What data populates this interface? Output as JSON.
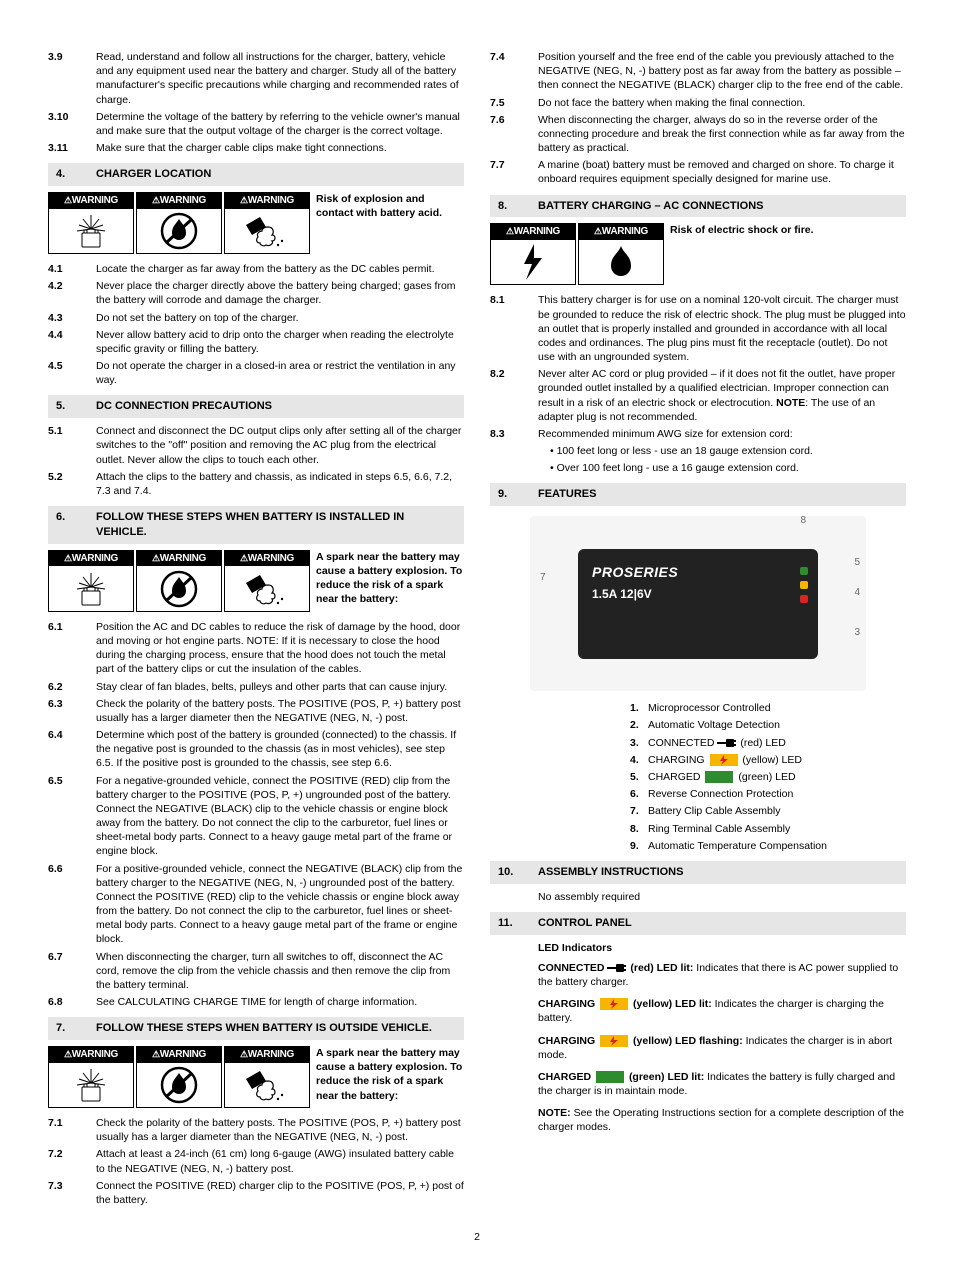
{
  "left": {
    "items_pre": [
      {
        "n": "3.9",
        "t": "Read, understand and follow all instructions for the charger, battery, vehicle and any equipment used near the battery and charger. Study all of the battery manufacturer's specific precautions while charging and recommended rates of charge."
      },
      {
        "n": "3.10",
        "t": "Determine the voltage of the battery by referring to the vehicle owner's manual and make sure that the output voltage of the charger is the correct voltage."
      },
      {
        "n": "3.11",
        "t": "Make sure that the charger cable clips make tight connections."
      }
    ],
    "s4": {
      "n": "4.",
      "t": "CHARGER LOCATION"
    },
    "w4": "Risk of explosion and contact with battery acid.",
    "items4": [
      {
        "n": "4.1",
        "t": "Locate the charger as far away from the battery as the DC cables permit."
      },
      {
        "n": "4.2",
        "t": "Never place the charger directly above the battery being charged; gases from the battery will corrode and damage the charger."
      },
      {
        "n": "4.3",
        "t": "Do not set the battery on top of the charger."
      },
      {
        "n": "4.4",
        "t": "Never allow battery acid to drip onto the charger when reading the electrolyte specific gravity or filling the battery."
      },
      {
        "n": "4.5",
        "t": "Do not operate the charger in a closed-in area or restrict the ventilation in any way."
      }
    ],
    "s5": {
      "n": "5.",
      "t": "DC CONNECTION PRECAUTIONS"
    },
    "items5": [
      {
        "n": "5.1",
        "t": "Connect and disconnect the DC output clips only after setting all of the charger switches to the \"off\" position and removing the AC plug from the electrical outlet. Never allow the clips to touch each other."
      },
      {
        "n": "5.2",
        "t": "Attach the clips to the battery and chassis, as indicated in steps 6.5, 6.6, 7.2, 7.3 and 7.4."
      }
    ],
    "s6": {
      "n": "6.",
      "t": "FOLLOW THESE STEPS WHEN BATTERY IS INSTALLED IN VEHICLE."
    },
    "w6": "A spark near the battery may cause a battery explosion. To reduce the risk of a spark near the battery:",
    "items6": [
      {
        "n": "6.1",
        "t": "Position the AC and DC cables to reduce the risk of damage by the hood, door and moving or hot engine parts. NOTE: If it is necessary to close the hood during the charging process, ensure that the hood does not touch the metal part of the battery clips or cut the insulation of the cables."
      },
      {
        "n": "6.2",
        "t": "Stay clear of fan blades, belts, pulleys and other parts that can cause injury."
      },
      {
        "n": "6.3",
        "t": "Check the polarity of the battery posts. The POSITIVE (POS, P, +) battery post usually has a larger diameter then the NEGATIVE (NEG, N, -) post."
      },
      {
        "n": "6.4",
        "t": "Determine which post of the battery is grounded (connected) to the chassis. If the negative post is grounded to the chassis (as in most vehicles), see step 6.5. If the positive post is grounded to the chassis, see step 6.6."
      },
      {
        "n": "6.5",
        "t": "For a negative-grounded vehicle, connect the POSITIVE (RED) clip from the battery charger to the POSITIVE (POS, P, +) ungrounded post of the battery. Connect the NEGATIVE (BLACK) clip to the vehicle chassis or engine block away from the battery. Do not connect the clip to the carburetor, fuel lines or sheet-metal body parts. Connect to a heavy gauge metal part of the frame or engine block."
      },
      {
        "n": "6.6",
        "t": "For a positive-grounded vehicle, connect the NEGATIVE (BLACK) clip from the battery charger to the NEGATIVE (NEG, N, -) ungrounded post of the battery. Connect the POSITIVE (RED) clip to the vehicle chassis or engine block away from the battery. Do not connect the clip to the carburetor, fuel lines or sheet-metal body parts. Connect to a heavy gauge metal part of the frame or engine block."
      },
      {
        "n": "6.7",
        "t": "When disconnecting the charger, turn all switches to off, disconnect the AC cord, remove the clip from the vehicle chassis and then remove the clip from the battery terminal."
      },
      {
        "n": "6.8",
        "t": "See CALCULATING CHARGE TIME for length of charge information."
      }
    ],
    "s7": {
      "n": "7.",
      "t": "FOLLOW THESE STEPS WHEN BATTERY IS OUTSIDE VEHICLE."
    },
    "w7": "A spark near the battery may cause a battery explosion. To reduce the risk of a spark near the battery:",
    "items7": [
      {
        "n": "7.1",
        "t": "Check the polarity of the battery posts. The POSITIVE (POS, P, +) battery post usually has a larger diameter than the NEGATIVE (NEG, N, -) post."
      },
      {
        "n": "7.2",
        "t": "Attach at least a 24-inch (61 cm) long 6-gauge (AWG) insulated battery cable to the NEGATIVE (NEG, N, -) battery post."
      },
      {
        "n": "7.3",
        "t": "Connect the POSITIVE (RED) charger clip to the POSITIVE (POS, P, +) post of the battery."
      }
    ]
  },
  "right": {
    "items7b": [
      {
        "n": "7.4",
        "t": "Position yourself and the free end of the cable you previously attached to the NEGATIVE (NEG, N, -) battery post as far away from the battery as possible – then connect the NEGATIVE (BLACK) charger clip to the free end of the cable."
      },
      {
        "n": "7.5",
        "t": "Do not face the battery when making the final connection."
      },
      {
        "n": "7.6",
        "t": "When disconnecting the charger, always do so in the reverse order of the connecting procedure and break the first connection while as far away from the battery as practical."
      },
      {
        "n": "7.7",
        "t": "A marine (boat) battery must be removed and charged on shore. To charge it onboard requires equipment specially designed for marine use."
      }
    ],
    "s8": {
      "n": "8.",
      "t": "BATTERY CHARGING – AC CONNECTIONS"
    },
    "w8": "Risk of electric shock or fire.",
    "items8": [
      {
        "n": "8.1",
        "t": "This battery charger is for use on a nominal 120-volt circuit. The charger must be grounded to reduce the risk of electric shock. The plug must be plugged into an outlet that is properly installed and grounded in accordance with all local codes and ordinances. The plug pins must fit the receptacle (outlet). Do not use with an ungrounded system."
      },
      {
        "n": "8.2",
        "t": "Never alter AC cord or plug provided – if it does not fit the outlet, have proper grounded outlet installed by a qualified electrician. Improper connection can result in a risk of an electric shock or electrocution. NOTE: The use of an adapter plug is not recommended.",
        "note": "NOTE"
      },
      {
        "n": "8.3",
        "t": "Recommended minimum AWG size for extension cord:"
      }
    ],
    "bullets8": [
      "100 feet long or less - use an 18 gauge extension cord.",
      "Over 100 feet long - use a 16 gauge extension cord."
    ],
    "s9": {
      "n": "9.",
      "t": "FEATURES"
    },
    "device": {
      "brand": "PROSERIES",
      "spec": "1.5A 12|6V"
    },
    "callouts": [
      "8",
      "7",
      "5",
      "4",
      "3"
    ],
    "features": [
      {
        "n": "1.",
        "t": "Microprocessor Controlled"
      },
      {
        "n": "2.",
        "t": "Automatic Voltage Detection"
      },
      {
        "n": "3.",
        "pre": "CONNECTED",
        "icon": "plug",
        "paren": "(red) LED"
      },
      {
        "n": "4.",
        "pre": "CHARGING",
        "icon": "swatch",
        "color": "#f7b500",
        "bolt": true,
        "paren": "(yellow) LED"
      },
      {
        "n": "5.",
        "pre": "CHARGED",
        "icon": "swatch",
        "color": "#2e8b2e",
        "paren": "(green) LED"
      },
      {
        "n": "6.",
        "t": "Reverse Connection Protection"
      },
      {
        "n": "7.",
        "t": "Battery Clip Cable Assembly"
      },
      {
        "n": "8.",
        "t": "Ring Terminal Cable Assembly"
      },
      {
        "n": "9.",
        "t": "Automatic Temperature Compensation"
      }
    ],
    "s10": {
      "n": "10.",
      "t": "ASSEMBLY INSTRUCTIONS"
    },
    "t10": "No assembly required",
    "s11": {
      "n": "11.",
      "t": "CONTROL PANEL"
    },
    "cp_title": "LED Indicators",
    "cp": [
      {
        "lead": "CONNECTED",
        "icon": "plug",
        "mid": "(red) LED lit:",
        "t": "Indicates that there is AC power supplied to the battery charger."
      },
      {
        "lead": "CHARGING",
        "icon": "swatch",
        "color": "#f7b500",
        "bolt": true,
        "mid": "(yellow) LED lit:",
        "t": "Indicates the charger is charging the battery."
      },
      {
        "lead": "CHARGING",
        "icon": "swatch",
        "color": "#f7b500",
        "bolt": true,
        "mid": "(yellow) LED flashing:",
        "t": "Indicates the charger is in abort mode."
      },
      {
        "lead": "CHARGED",
        "icon": "swatch",
        "color": "#2e8b2e",
        "mid": "(green) LED lit:",
        "t": "Indicates the battery is fully charged and the charger is in maintain mode."
      }
    ],
    "cp_note_lead": "NOTE:",
    "cp_note": " See the Operating Instructions section for a complete description of the charger modes."
  },
  "warning_label": "WARNING",
  "colors": {
    "section_bg": "#e6e6e6",
    "red": "#d92424",
    "yellow": "#f7b500",
    "green": "#2e8b2e"
  },
  "page": "2"
}
